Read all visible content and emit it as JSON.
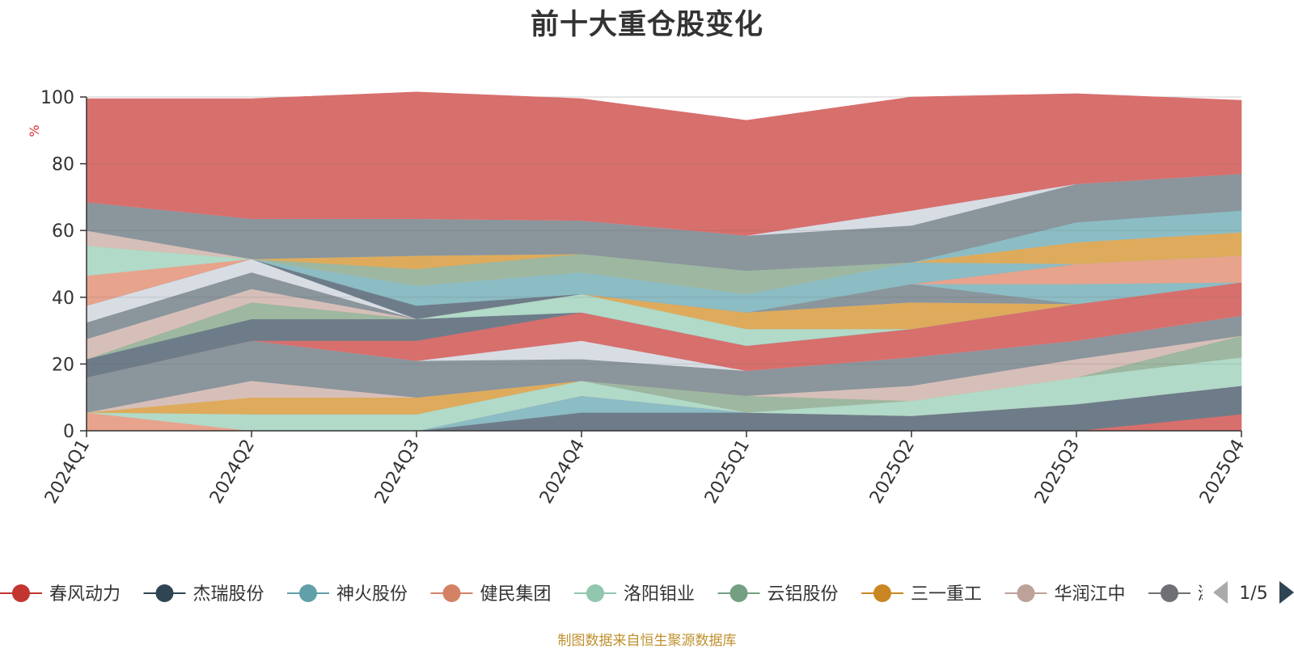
{
  "chart_data": {
    "type": "area",
    "title": "前十大重仓股变化",
    "ylabel": "%",
    "ylim": [
      0,
      100
    ],
    "yticks": [
      0,
      20,
      40,
      60,
      80,
      100
    ],
    "grid": true,
    "stacked": true,
    "legend_position": "bottom",
    "categories": [
      "2024Q1",
      "2024Q2",
      "2024Q3",
      "2024Q4",
      "2025Q1",
      "2025Q2",
      "2025Q3",
      "2025Q4"
    ],
    "series": [
      {
        "name": "春风动力",
        "color": "#d76f6d",
        "values": [
          0,
          0,
          0,
          0,
          0,
          0,
          0,
          5
        ]
      },
      {
        "name": "杰瑞股份",
        "color": "#6e7c89",
        "values": [
          0,
          0,
          0,
          5.5,
          5.5,
          4.5,
          8,
          8.5
        ]
      },
      {
        "name": "神火股份",
        "color": "#8cbcc4",
        "values": [
          0,
          0,
          0,
          5,
          0,
          0,
          0,
          0
        ]
      },
      {
        "name": "健民集团",
        "color": "#e8a38d",
        "values": [
          5.5,
          0,
          0,
          0,
          0,
          0,
          0,
          0
        ]
      },
      {
        "name": "洛阳钼业",
        "color": "#b1dac8",
        "values": [
          0,
          5,
          5,
          4.5,
          0,
          4.5,
          8,
          8.5
        ]
      },
      {
        "name": "云铝股份",
        "color": "#9db7a0",
        "values": [
          0,
          0,
          0,
          0,
          5,
          0,
          0,
          6.5
        ]
      },
      {
        "name": "三一重工",
        "color": "#deab5c",
        "values": [
          0,
          5,
          5,
          0,
          0,
          0,
          0,
          0
        ]
      },
      {
        "name": "华润江中",
        "color": "#d7bfb9",
        "values": [
          0,
          5,
          0,
          0,
          0,
          4.5,
          5.5,
          0
        ]
      },
      {
        "name": "潍柴动力",
        "color": "#8a959c",
        "values": [
          10.5,
          12,
          11,
          6.5,
          7.5,
          8.5,
          5.5,
          6
        ]
      },
      {
        "name": "",
        "color": "#d8dde4",
        "values": [
          0,
          0,
          0,
          5.5,
          0,
          0,
          0,
          0
        ]
      },
      {
        "name": "",
        "color": "#d76f6d",
        "values": [
          0,
          0,
          6,
          8.5,
          7.5,
          8.5,
          11,
          10
        ]
      },
      {
        "name": "",
        "color": "#6e7c89",
        "values": [
          5.5,
          6.5,
          6.5,
          0,
          0,
          0,
          0,
          0
        ]
      },
      {
        "name": "",
        "color": "#b1dac8",
        "values": [
          0,
          0,
          0,
          5.5,
          5,
          0,
          0,
          0
        ]
      },
      {
        "name": "",
        "color": "#9db7a0",
        "values": [
          0,
          5,
          0,
          0,
          0,
          0,
          0,
          0
        ]
      },
      {
        "name": "",
        "color": "#deab5c",
        "values": [
          0,
          0,
          0,
          0,
          5,
          8,
          0,
          0
        ]
      },
      {
        "name": "",
        "color": "#d7bfb9",
        "values": [
          6,
          4,
          0,
          0,
          0,
          0,
          0,
          0
        ]
      },
      {
        "name": "",
        "color": "#8a959c",
        "values": [
          5,
          5,
          0,
          0,
          0,
          5.5,
          0,
          0
        ]
      },
      {
        "name": "",
        "color": "#8cbcc4",
        "values": [
          0,
          0,
          0,
          0,
          0,
          0,
          6,
          0
        ]
      },
      {
        "name": "",
        "color": "#e8a38d",
        "values": [
          0,
          0,
          0,
          0,
          0,
          0,
          6,
          8
        ]
      },
      {
        "name": "",
        "color": "#d8dde4",
        "values": [
          5,
          4,
          0,
          0,
          0,
          0,
          0,
          0
        ]
      },
      {
        "name": "",
        "color": "#6e7c89",
        "values": [
          0,
          0,
          4,
          0,
          0,
          0,
          0,
          0
        ]
      },
      {
        "name": "",
        "color": "#8cbcc4",
        "values": [
          0,
          0,
          6,
          6.5,
          5.5,
          6.5,
          0,
          0
        ]
      },
      {
        "name": "",
        "color": "#e8a38d",
        "values": [
          9,
          0,
          0,
          0,
          0,
          0,
          0,
          0
        ]
      },
      {
        "name": "",
        "color": "#b1dac8",
        "values": [
          9,
          0,
          0,
          0,
          0,
          0,
          0,
          0
        ]
      },
      {
        "name": "",
        "color": "#9db7a0",
        "values": [
          0,
          0,
          5,
          5.5,
          7,
          0,
          0,
          0
        ]
      },
      {
        "name": "",
        "color": "#deab5c",
        "values": [
          0,
          0,
          4,
          0,
          0,
          0,
          6.5,
          7
        ]
      },
      {
        "name": "",
        "color": "#d7bfb9",
        "values": [
          4.5,
          0,
          0,
          0,
          0,
          0,
          0,
          0
        ]
      },
      {
        "name": "",
        "color": "#8cbcc4",
        "values": [
          0,
          0,
          0,
          0,
          0,
          0,
          6,
          6.5
        ]
      },
      {
        "name": "",
        "color": "#8a959c",
        "values": [
          8.5,
          12,
          11,
          10,
          10.5,
          11,
          11.5,
          11
        ]
      },
      {
        "name": "",
        "color": "#d8dde4",
        "values": [
          0,
          0,
          0,
          0,
          0,
          4.5,
          0,
          0
        ]
      },
      {
        "name": "",
        "color": "#d76f6d",
        "values": [
          31,
          36,
          38,
          36.5,
          34.5,
          34,
          27,
          22
        ]
      }
    ]
  },
  "legend": {
    "items": [
      {
        "label": "春风动力",
        "color": "#c23531"
      },
      {
        "label": "杰瑞股份",
        "color": "#2f4554"
      },
      {
        "label": "神火股份",
        "color": "#61a0a8"
      },
      {
        "label": "健民集团",
        "color": "#d48265"
      },
      {
        "label": "洛阳钼业",
        "color": "#91c7ae"
      },
      {
        "label": "云铝股份",
        "color": "#749f83"
      },
      {
        "label": "三一重工",
        "color": "#ca8622"
      },
      {
        "label": "华润江中",
        "color": "#bda29a"
      },
      {
        "label": "潍",
        "color": "#6e7074"
      }
    ],
    "page": "1/5",
    "prev_disabled_color": "#aaaaaa",
    "next_color": "#2f4554"
  },
  "footer": "制图数据来自恒生聚源数据库"
}
